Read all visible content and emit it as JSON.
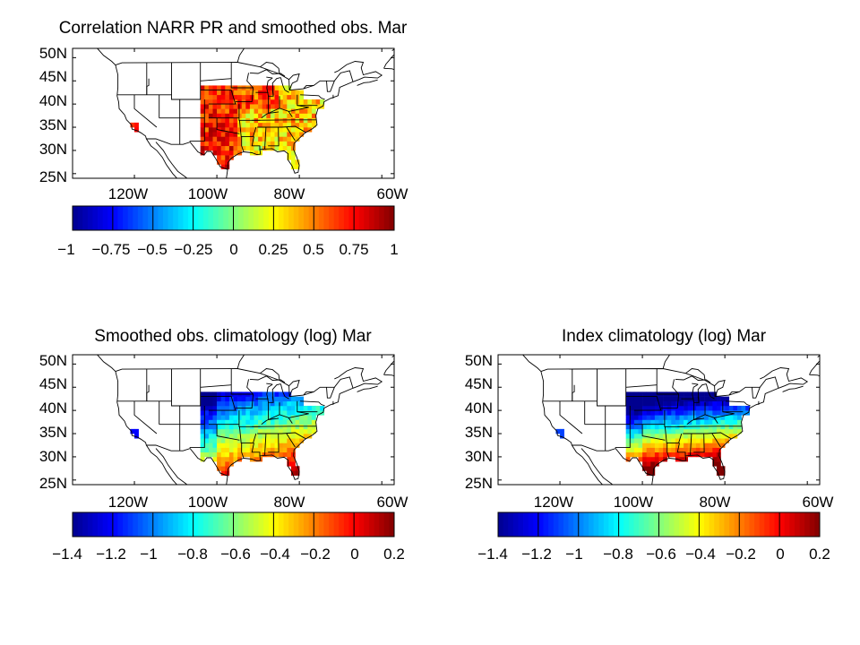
{
  "figure": {
    "panels": [
      {
        "id": "correlation",
        "title": "Correlation NARR PR and smoothed obs. Mar",
        "lat_ticks": [
          "50N",
          "45N",
          "40N",
          "35N",
          "30N",
          "25N"
        ],
        "lon_ticks": [
          "120W",
          "100W",
          "80W",
          "60W"
        ],
        "colorbar_ticks": [
          "−1",
          "−0.75",
          "−0.5",
          "−0.25",
          "0",
          "0.25",
          "0.5",
          "0.75",
          "1"
        ],
        "colorbar_range": [
          -1,
          1
        ],
        "field": "correlation"
      },
      {
        "id": "obs-climatology",
        "title": "Smoothed obs. climatology (log) Mar",
        "lat_ticks": [
          "50N",
          "45N",
          "40N",
          "35N",
          "30N",
          "25N"
        ],
        "lon_ticks": [
          "120W",
          "100W",
          "80W",
          "60W"
        ],
        "colorbar_ticks": [
          "−1.4",
          "−1.2",
          "−1",
          "−0.8",
          "−0.6",
          "−0.4",
          "−0.2",
          "0",
          "0.2"
        ],
        "colorbar_range": [
          -1.4,
          0.2
        ],
        "field": "obs"
      },
      {
        "id": "index-climatology",
        "title": "Index climatology (log) Mar",
        "lat_ticks": [
          "50N",
          "45N",
          "40N",
          "35N",
          "30N",
          "25N"
        ],
        "lon_ticks": [
          "120W",
          "100W",
          "80W",
          "60W"
        ],
        "colorbar_ticks": [
          "−1.4",
          "−1.2",
          "−1",
          "−0.8",
          "−0.6",
          "−0.4",
          "−0.2",
          "0",
          "0.2"
        ],
        "colorbar_range": [
          -1.4,
          0.2
        ],
        "field": "index"
      }
    ],
    "colormap": [
      "#00008f",
      "#0000ff",
      "#0080ff",
      "#00ffff",
      "#80ff80",
      "#ffff00",
      "#ff8000",
      "#ff0000",
      "#800000"
    ]
  }
}
